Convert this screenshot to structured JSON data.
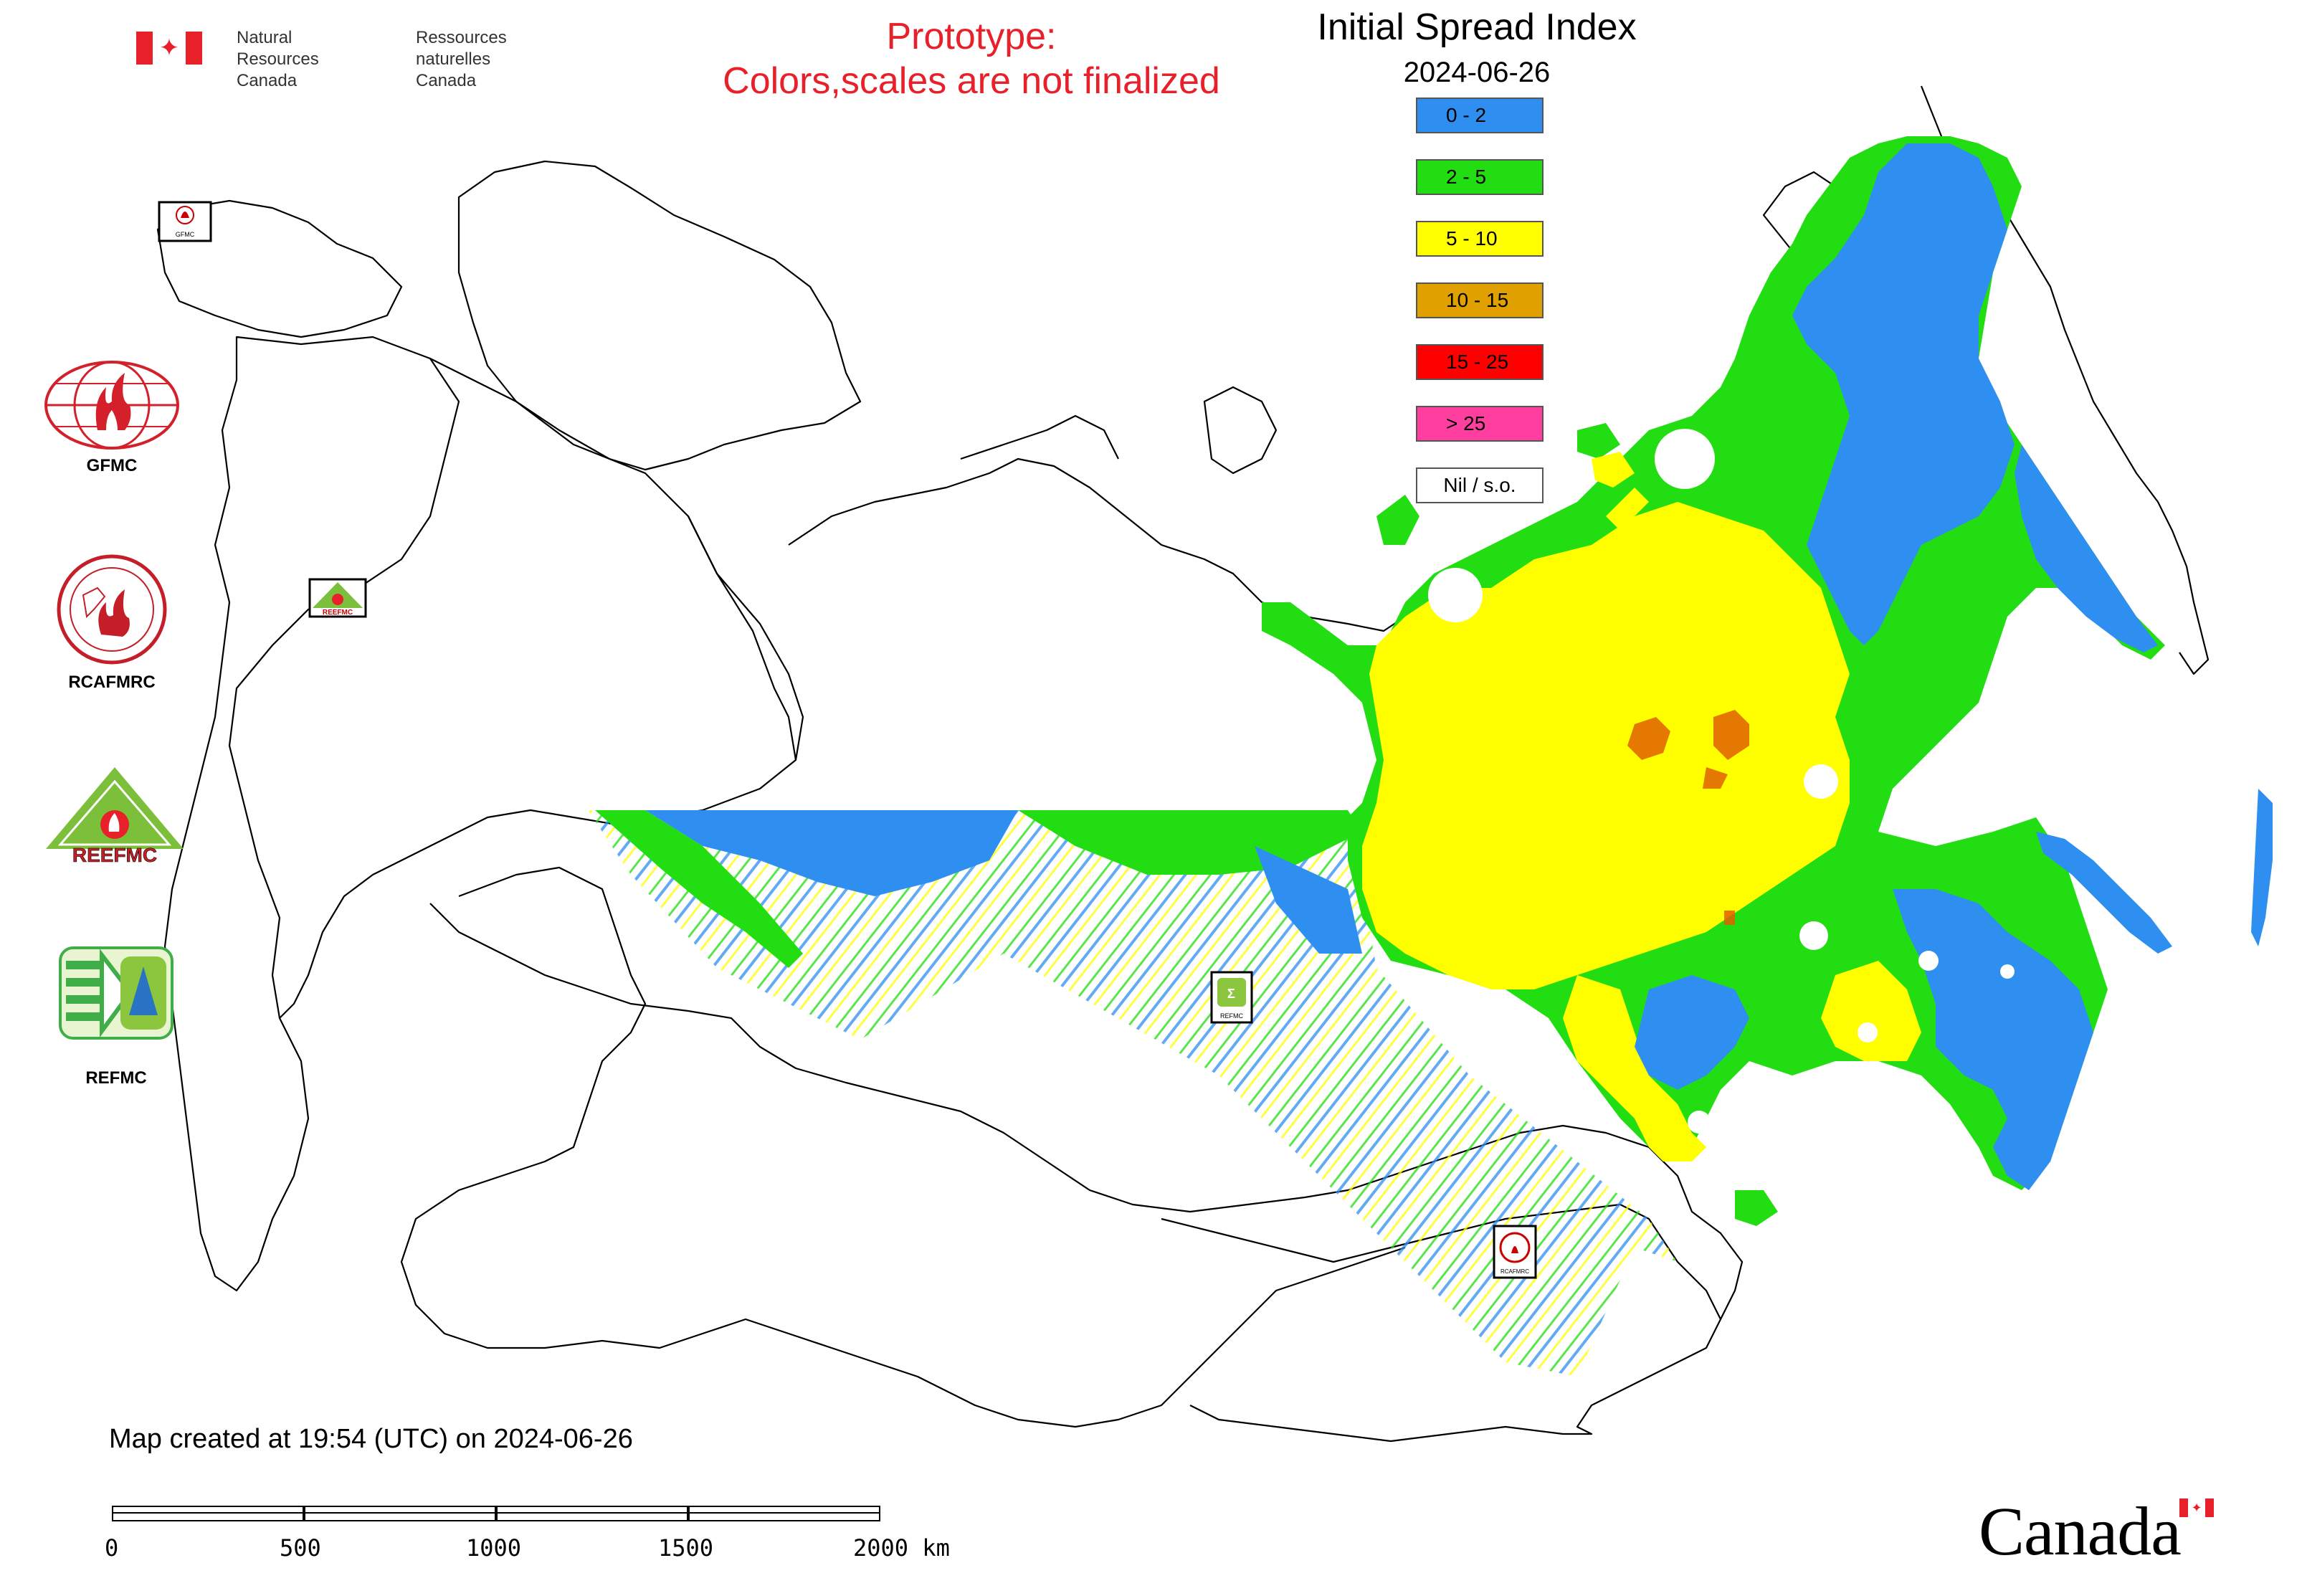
{
  "header": {
    "agency_en": [
      "Natural Resources",
      "Canada"
    ],
    "agency_fr": [
      "Ressources naturelles",
      "Canada"
    ]
  },
  "prototype_notice": [
    "Prototype:",
    "Colors,scales are not finalized"
  ],
  "title": "Initial Spread Index",
  "date": "2024-06-26",
  "legend": [
    {
      "label": "0 - 2",
      "color": "#2e8ff0"
    },
    {
      "label": "2 - 5",
      "color": "#22dd11"
    },
    {
      "label": "5 - 10",
      "color": "#ffff00"
    },
    {
      "label": "10 - 15",
      "color": "#e0a000"
    },
    {
      "label": "15 - 25",
      "color": "#ff0000"
    },
    {
      "label": "> 25",
      "color": "#ff3fa0"
    },
    {
      "label": "Nil / s.o.",
      "color": "#ffffff"
    }
  ],
  "logos": [
    {
      "name": "GFMC",
      "label": "GFMC"
    },
    {
      "name": "RCAFMRC",
      "label": "RCAFMRC"
    },
    {
      "name": "REEFMC",
      "label": "REEFMC",
      "text": "REEFMC"
    },
    {
      "name": "REFMC",
      "label": "REFMC"
    }
  ],
  "map_markers": [
    "GFMC",
    "REEFMC",
    "REFMC",
    "RCAFMRC"
  ],
  "footer": {
    "created": "Map created at 19:54 (UTC) on 2024-06-26",
    "scale_labels": [
      "0",
      "500",
      "1000",
      "1500",
      "2000 km"
    ],
    "wordmark": "Canada"
  }
}
